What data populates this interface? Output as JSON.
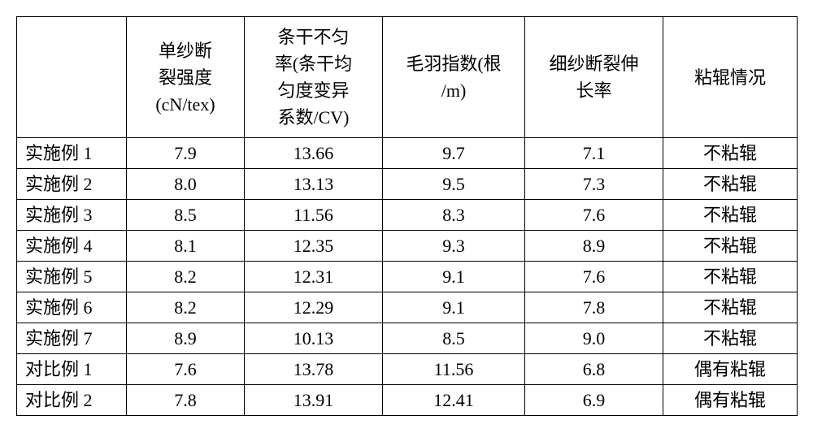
{
  "table": {
    "columns": [
      {
        "lines": [
          ""
        ]
      },
      {
        "lines": [
          "单纱断",
          "裂强度",
          "(cN/tex)"
        ]
      },
      {
        "lines": [
          "条干不匀",
          "率(条干均",
          "匀度变异",
          "系数/CV)"
        ]
      },
      {
        "lines": [
          "毛羽指数(根",
          "/m)"
        ]
      },
      {
        "lines": [
          "细纱断裂伸",
          "长率"
        ]
      },
      {
        "lines": [
          "粘辊情况"
        ]
      }
    ],
    "rows": [
      {
        "label": "实施例 1",
        "c1": "7.9",
        "c2": "13.66",
        "c3": "9.7",
        "c4": "7.1",
        "c5": "不粘辊"
      },
      {
        "label": "实施例 2",
        "c1": "8.0",
        "c2": "13.13",
        "c3": "9.5",
        "c4": "7.3",
        "c5": "不粘辊"
      },
      {
        "label": "实施例 3",
        "c1": "8.5",
        "c2": "11.56",
        "c3": "8.3",
        "c4": "7.6",
        "c5": "不粘辊"
      },
      {
        "label": "实施例 4",
        "c1": "8.1",
        "c2": "12.35",
        "c3": "9.3",
        "c4": "8.9",
        "c5": "不粘辊"
      },
      {
        "label": "实施例 5",
        "c1": "8.2",
        "c2": "12.31",
        "c3": "9.1",
        "c4": "7.6",
        "c5": "不粘辊"
      },
      {
        "label": "实施例 6",
        "c1": "8.2",
        "c2": "12.29",
        "c3": "9.1",
        "c4": "7.8",
        "c5": "不粘辊"
      },
      {
        "label": "实施例 7",
        "c1": "8.9",
        "c2": "10.13",
        "c3": "8.5",
        "c4": "9.0",
        "c5": "不粘辊"
      },
      {
        "label": "对比例 1",
        "c1": "7.6",
        "c2": "13.78",
        "c3": "11.56",
        "c4": "6.8",
        "c5": "偶有粘辊"
      },
      {
        "label": "对比例 2",
        "c1": "7.8",
        "c2": "13.91",
        "c3": "12.41",
        "c4": "6.9",
        "c5": "偶有粘辊"
      }
    ],
    "style": {
      "border_color": "#000000",
      "background_color": "#ffffff",
      "font_size_pt": 16,
      "font_family": "SimSun",
      "text_color": "#000000"
    }
  }
}
